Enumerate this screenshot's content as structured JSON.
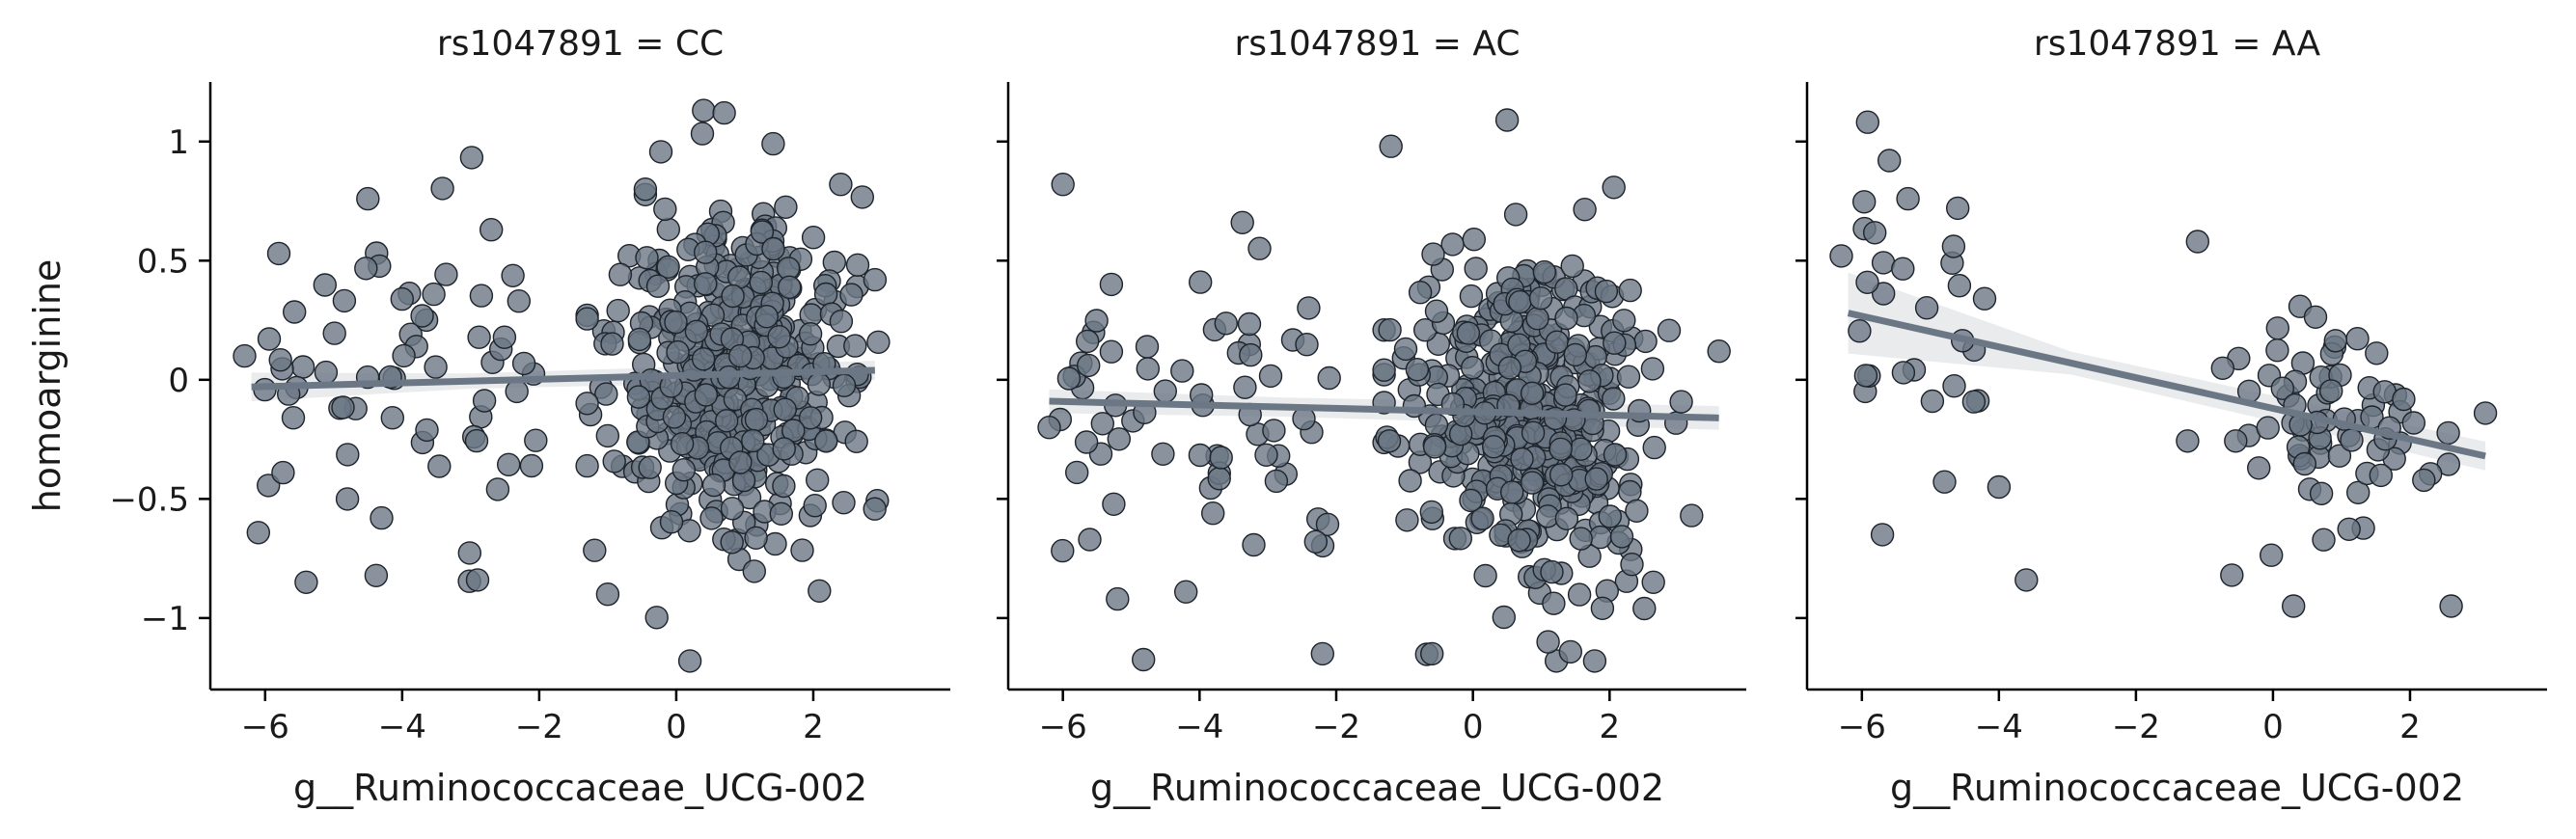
{
  "chart_data": [
    {
      "type": "scatter",
      "title": "rs1047891 = CC",
      "xlabel": "g__Ruminococcaceae_UCG-002",
      "ylabel": "homoarginine",
      "xlim": [
        -6.8,
        4.0
      ],
      "ylim": [
        -1.3,
        1.25
      ],
      "xticks": [
        -6,
        -4,
        -2,
        0,
        2
      ],
      "yticks": [
        -1.0,
        -0.5,
        0.0,
        0.5,
        1.0
      ],
      "n_points": 520,
      "point_summary": "dense cluster between x = -1 and 3, sparse points from x = -6.3 to -2",
      "regression": {
        "x": [
          -6.2,
          2.9
        ],
        "y": [
          -0.03,
          0.04
        ],
        "ci_halfwidth": [
          0.06,
          0.04
        ]
      },
      "highlighted_points": [
        [
          -6.3,
          0.1
        ],
        [
          -5.8,
          0.53
        ],
        [
          -4.5,
          0.76
        ],
        [
          -5.4,
          -0.85
        ],
        [
          -4.3,
          -0.58
        ],
        [
          -2.7,
          0.63
        ],
        [
          -2.9,
          -0.84
        ],
        [
          0.4,
          1.13
        ],
        [
          0.7,
          1.12
        ],
        [
          0.2,
          -1.18
        ],
        [
          2.9,
          0.42
        ],
        [
          2.4,
          0.82
        ],
        [
          -1.0,
          -0.9
        ]
      ]
    },
    {
      "type": "scatter",
      "title": "rs1047891 = AC",
      "xlabel": "g__Ruminococcaceae_UCG-002",
      "ylabel": "",
      "xlim": [
        -6.8,
        4.0
      ],
      "ylim": [
        -1.3,
        1.25
      ],
      "xticks": [
        -6,
        -4,
        -2,
        0,
        2
      ],
      "yticks": [
        -1.0,
        -0.5,
        0.0,
        0.5,
        1.0
      ],
      "n_points": 520,
      "point_summary": "dense cluster between x = -1 and 3, sparse points from x = -6.2 to -2",
      "regression": {
        "x": [
          -6.2,
          3.6
        ],
        "y": [
          -0.09,
          -0.16
        ],
        "ci_halfwidth": [
          0.05,
          0.05
        ]
      },
      "highlighted_points": [
        [
          -6.0,
          0.82
        ],
        [
          -6.2,
          -0.2
        ],
        [
          -5.2,
          -0.92
        ],
        [
          -4.2,
          -0.89
        ],
        [
          -2.3,
          -0.68
        ],
        [
          -2.2,
          -1.15
        ],
        [
          -1.2,
          0.98
        ],
        [
          0.5,
          1.09
        ],
        [
          -0.6,
          -1.15
        ],
        [
          1.1,
          -1.1
        ],
        [
          3.6,
          0.12
        ],
        [
          3.2,
          -0.57
        ]
      ]
    },
    {
      "type": "scatter",
      "title": "rs1047891 = AA",
      "xlabel": "g__Ruminococcaceae_UCG-002",
      "ylabel": "",
      "xlim": [
        -6.8,
        4.0
      ],
      "ylim": [
        -1.3,
        1.25
      ],
      "xticks": [
        -6,
        -4,
        -2,
        0,
        2
      ],
      "yticks": [
        -1.0,
        -0.5,
        0.0,
        0.5,
        1.0
      ],
      "n_points": 110,
      "point_summary": "cluster between x = -1 and 3, group between x = -6.3 and -4",
      "regression": {
        "x": [
          -6.2,
          3.1
        ],
        "y": [
          0.28,
          -0.32
        ],
        "ci_halfwidth": [
          0.17,
          0.06
        ]
      },
      "highlighted_points": [
        [
          -6.3,
          0.52
        ],
        [
          -5.6,
          0.92
        ],
        [
          -4.6,
          0.72
        ],
        [
          -5.7,
          -0.65
        ],
        [
          -3.6,
          -0.84
        ],
        [
          -4.0,
          -0.45
        ],
        [
          -1.1,
          0.58
        ],
        [
          0.3,
          -0.95
        ],
        [
          2.6,
          -0.95
        ],
        [
          3.1,
          -0.14
        ],
        [
          -0.6,
          -0.82
        ]
      ]
    }
  ]
}
